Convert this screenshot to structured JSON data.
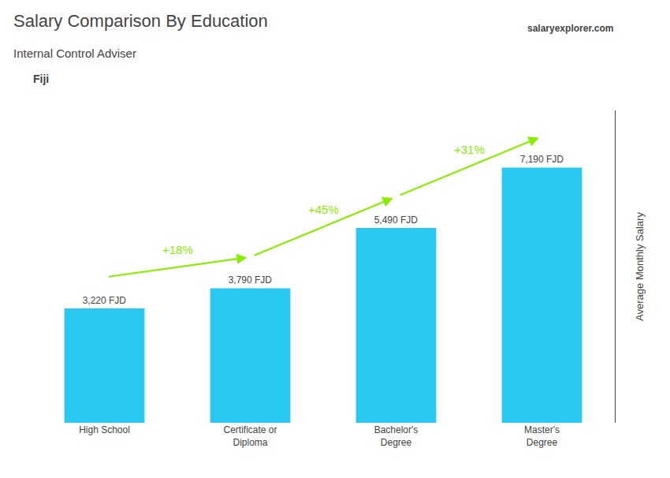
{
  "chart_data": {
    "type": "bar",
    "title": "Salary Comparison By Education",
    "subtitle": "Internal Control Adviser",
    "ylabel": "Average Monthly Salary",
    "categories": [
      "High School",
      "Certificate or\nDiploma",
      "Bachelor's\nDegree",
      "Master's\nDegree"
    ],
    "values": [
      3220,
      3790,
      5490,
      7190
    ],
    "value_labels": [
      "3,220 FJD",
      "3,790 FJD",
      "5,490 FJD",
      "7,190 FJD"
    ],
    "data_labels": true,
    "color": "#29c8f0",
    "ylim": [
      0,
      8800
    ],
    "yticks": [],
    "grid": false,
    "tick_labels": "x",
    "annotations": [
      {
        "text": "+18%",
        "from": "High School",
        "to": "Certificate or\nDiploma",
        "color": "#88ee00"
      },
      {
        "text": "+45%",
        "from": "Certificate or\nDiploma",
        "to": "Bachelor's\nDegree",
        "color": "#88ee00"
      },
      {
        "text": "+31%",
        "from": "Bachelor's\nDegree",
        "to": "Master's\nDegree",
        "color": "#88ee00"
      },
      {
        "text": "Fiji"
      },
      {
        "text": "salaryexplorer.com"
      }
    ]
  }
}
